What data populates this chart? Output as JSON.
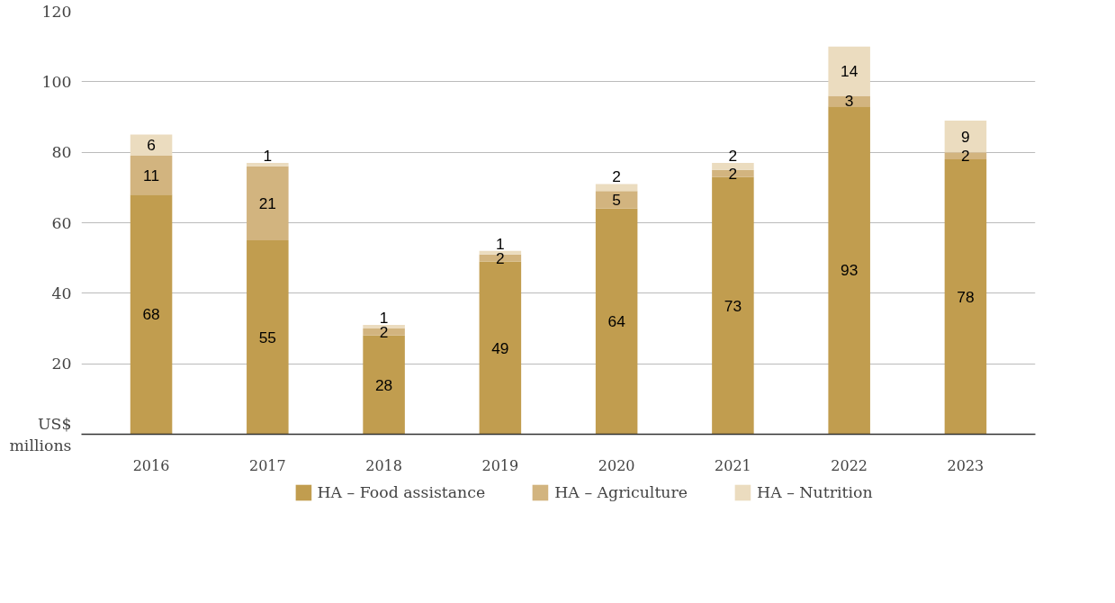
{
  "chart_data": {
    "type": "bar",
    "stacked": true,
    "ylabel": "US$ millions",
    "categories": [
      "2016",
      "2017",
      "2018",
      "2019",
      "2020",
      "2021",
      "2022",
      "2023"
    ],
    "series": [
      {
        "name": "HA – Food assistance",
        "color": "#c19d4f",
        "values": [
          68,
          55,
          28,
          49,
          64,
          73,
          93,
          78
        ]
      },
      {
        "name": "HA – Agriculture",
        "color": "#d2b47f",
        "values": [
          11,
          21,
          2,
          2,
          5,
          2,
          3,
          2
        ]
      },
      {
        "name": "HA – Nutrition",
        "color": "#ebdcbf",
        "values": [
          6,
          1,
          1,
          1,
          2,
          2,
          14,
          9
        ]
      }
    ],
    "ylim": [
      0,
      120
    ],
    "yticks": [
      20,
      40,
      60,
      80,
      100,
      120
    ],
    "grid": "y",
    "legend": "bottom",
    "data_labels": true
  }
}
